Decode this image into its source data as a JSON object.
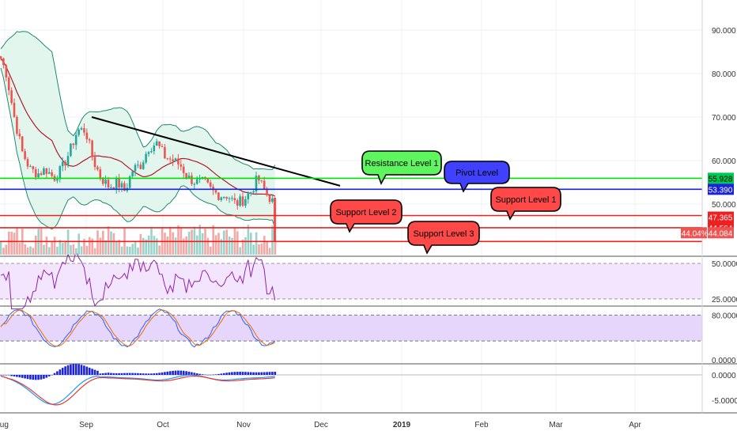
{
  "chart_data": {
    "type": "candlestick",
    "time_labels": [
      "Aug",
      "Sep",
      "Oct",
      "Nov",
      "Dec",
      "2019",
      "Feb",
      "Mar",
      "Apr"
    ],
    "price_axis": {
      "ticks": [
        "90.000",
        "80.000",
        "70.000",
        "60.000",
        "50.000"
      ],
      "tick_values": [
        90,
        80,
        70,
        60,
        50
      ],
      "range": [
        41,
        98
      ]
    },
    "price_tags": [
      {
        "label": "55.928",
        "value": 55.928,
        "color": "#00c853",
        "text_color": "#000000"
      },
      {
        "label": "53.390",
        "value": 53.39,
        "color": "#1a23d6",
        "text_color": "#ffffff"
      },
      {
        "label": "47.365",
        "value": 47.365,
        "color": "#ef2020",
        "text_color": "#ffffff"
      },
      {
        "label": "44.564",
        "value": 44.564,
        "color": "#ef2020",
        "text_color": "#ffffff"
      },
      {
        "label": "44.084",
        "value": 44.084,
        "color": "#ef5350",
        "text_color": "#ffffff"
      }
    ],
    "change_tag": "-44.04%",
    "horizontal_levels": [
      {
        "value": 55.928,
        "color": "#00e000"
      },
      {
        "value": 53.39,
        "color": "#1a23d6"
      },
      {
        "value": 47.365,
        "color": "#ef2020"
      },
      {
        "value": 44.564,
        "color": "#ef2020"
      },
      {
        "value": 41.4,
        "color": "#ef2020"
      }
    ],
    "callouts": [
      {
        "text": "Resistance Level 1",
        "color": "#5ef55e"
      },
      {
        "text": "Pivot Level",
        "color": "#4040ff"
      },
      {
        "text": "Support Level 1",
        "color": "#ff4848"
      },
      {
        "text": "Support Level 2",
        "color": "#ff4848"
      },
      {
        "text": "Support Level 3",
        "color": "#ff4848"
      }
    ],
    "rsi_axis": {
      "ticks": [
        "50.0000",
        "25.0000"
      ],
      "tick_values": [
        50,
        25
      ]
    },
    "stoch_axis": {
      "ticks": [
        "80.0000",
        "0.0000"
      ],
      "tick_values": [
        80,
        0
      ]
    },
    "macd_axis": {
      "ticks": [
        "0.0000",
        "-5.0000"
      ],
      "tick_values": [
        0,
        -5
      ]
    },
    "colors": {
      "up": "#26a69a",
      "down": "#ef5350",
      "bb_fill": "#e0f5ec",
      "rsi_fill": "#f3e5fd",
      "stoch_fill": "#e6d6fb"
    }
  }
}
